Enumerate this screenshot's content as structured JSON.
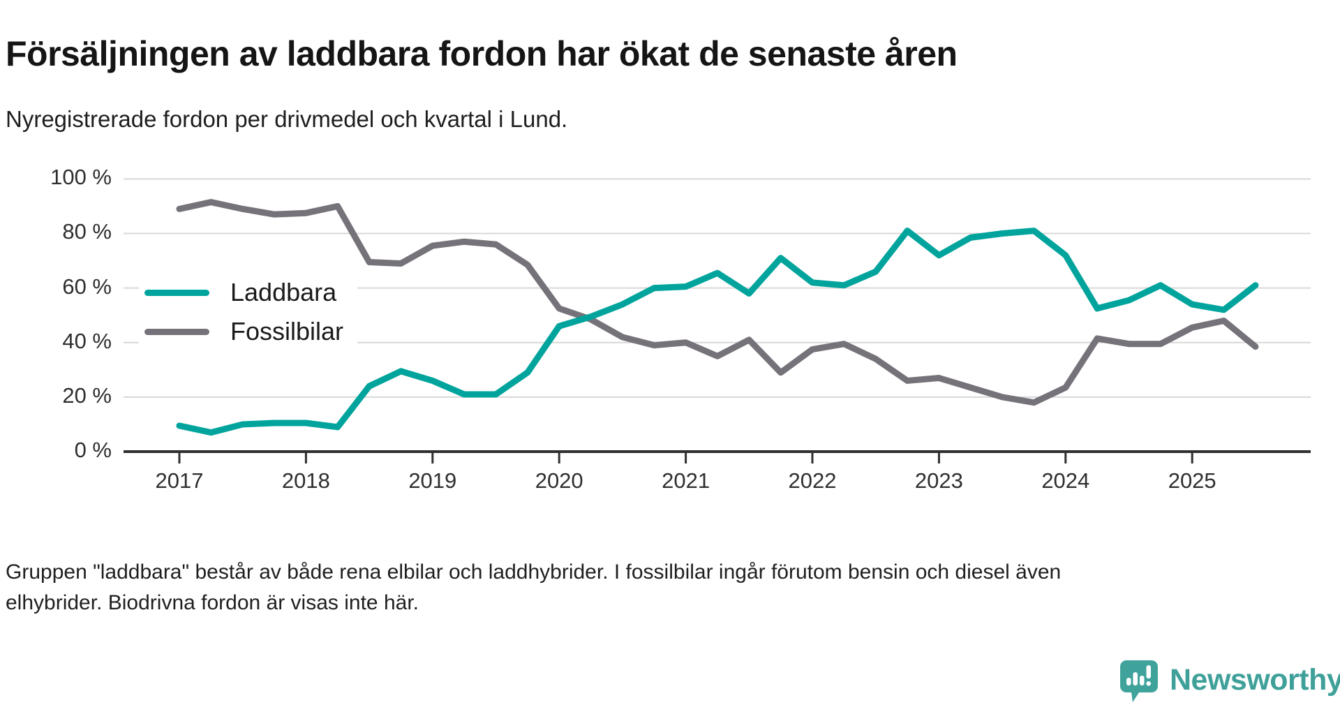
{
  "header": {
    "title": "Försäljningen av laddbara fordon har ökat de senaste åren",
    "subtitle": "Nyregistrerade fordon per drivmedel och kvartal i Lund."
  },
  "chart_data": {
    "type": "line",
    "unit": "%",
    "title": "Nyregistrerade fordon per drivmedel och kvartal i Lund",
    "ylim": [
      0,
      100
    ],
    "grid": "horizontal",
    "legend_position": "inside-left",
    "y_tick_labels": [
      "100 %",
      "80 %",
      "60 %",
      "40 %",
      "20 %",
      "0 %"
    ],
    "x_tick_labels": [
      "2017",
      "2018",
      "2019",
      "2020",
      "2021",
      "2022",
      "2023",
      "2024",
      "2025"
    ],
    "categories": [
      "2017 Q1",
      "2017 Q2",
      "2017 Q3",
      "2017 Q4",
      "2018 Q1",
      "2018 Q2",
      "2018 Q3",
      "2018 Q4",
      "2019 Q1",
      "2019 Q2",
      "2019 Q3",
      "2019 Q4",
      "2020 Q1",
      "2020 Q2",
      "2020 Q3",
      "2020 Q4",
      "2021 Q1",
      "2021 Q2",
      "2021 Q3",
      "2021 Q4",
      "2022 Q1",
      "2022 Q2",
      "2022 Q3",
      "2022 Q4",
      "2023 Q1",
      "2023 Q2",
      "2023 Q3",
      "2023 Q4",
      "2024 Q1",
      "2024 Q2",
      "2024 Q3",
      "2024 Q4",
      "2025 Q1",
      "2025 Q2",
      "2025 Q3"
    ],
    "series": [
      {
        "name": "Laddbara",
        "color": "#00a49c",
        "values": [
          9.5,
          7,
          10,
          10.5,
          10.5,
          9,
          24,
          29.5,
          26,
          21,
          21,
          29,
          46,
          49.5,
          54,
          60,
          60.5,
          65.5,
          58,
          71,
          62,
          61,
          66,
          81,
          72,
          78.5,
          80,
          81,
          72,
          52.5,
          55.5,
          61,
          54,
          52,
          61
        ]
      },
      {
        "name": "Fossilbilar",
        "color": "#767279",
        "values": [
          89,
          91.5,
          89,
          87,
          87.5,
          90,
          69.5,
          69,
          75.5,
          77,
          76,
          68.5,
          52.5,
          48.5,
          42,
          39,
          40,
          35,
          41,
          29,
          37.5,
          39.5,
          34,
          26,
          27,
          23.5,
          20,
          18,
          23.5,
          41.5,
          39.5,
          39.5,
          45.5,
          48,
          38.5
        ]
      }
    ],
    "colors": {
      "gridline": "#d8d8d8",
      "axis": "#2f2f2f"
    }
  },
  "footer": {
    "line1": "Gruppen \"laddbara\" består av både rena elbilar och laddhybrider. I fossilbilar ingår förutom bensin och diesel även",
    "line2": "elhybrider. Biodrivna fordon är visas inte här."
  },
  "branding": {
    "logo_text": "Newsworthy",
    "logo_color": "#3fa09a"
  }
}
